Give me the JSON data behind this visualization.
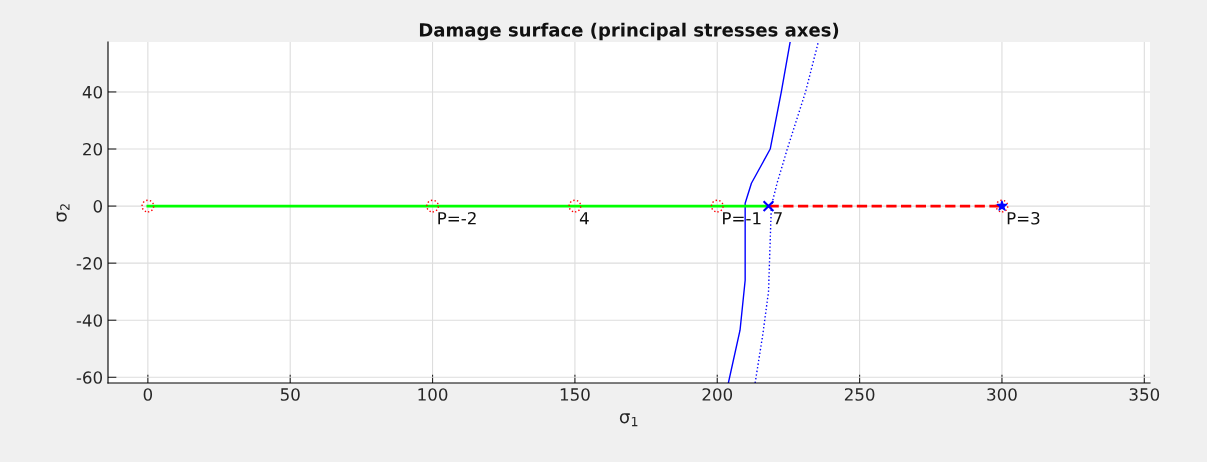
{
  "chart_data": {
    "type": "line",
    "title": "Damage surface (principal stresses axes)",
    "xlabel": "σ$_{1}$",
    "ylabel": "σ$_{2}$",
    "xlim": [
      -14,
      352
    ],
    "ylim": [
      -62,
      57.5
    ],
    "xticks": [
      0,
      50,
      100,
      150,
      200,
      250,
      300,
      350
    ],
    "yticks": [
      -60,
      -40,
      -20,
      0,
      20,
      40
    ],
    "grid": true,
    "series": [
      {
        "color": "#0000ff",
        "line_style": "solid",
        "x": [
          203.9,
          208,
          209.8,
          209.8,
          212,
          218.6,
          222.5,
          225.6
        ],
        "values": [
          -62,
          -43.5,
          -26,
          1,
          8,
          20,
          40,
          57.5
        ]
      },
      {
        "color": "#0000ff",
        "line_style": "dotted",
        "x": [
          213.3,
          216,
          218,
          219,
          221,
          224.6,
          231,
          235.5
        ],
        "values": [
          -62,
          -45,
          -30,
          0,
          8,
          20,
          40,
          57.5
        ]
      },
      {
        "color": "#00ff00",
        "line_style": "solid",
        "x": [
          0,
          218
        ],
        "values": [
          0,
          0
        ]
      },
      {
        "color": "#ff0000",
        "line_style": "dashed",
        "x": [
          218,
          300
        ],
        "values": [
          0,
          0
        ]
      },
      {
        "type": "scatter",
        "color": "#ff0000",
        "marker": "circle",
        "x": [
          0,
          100,
          150,
          200,
          300
        ],
        "values": [
          0,
          0,
          0,
          0,
          0
        ]
      },
      {
        "type": "scatter",
        "color": "#0000ff",
        "marker": "cross",
        "x": [
          218
        ],
        "values": [
          0
        ]
      },
      {
        "type": "scatter",
        "color": "#0000ff",
        "marker": "star",
        "x": [
          300
        ],
        "values": [
          0
        ]
      }
    ],
    "annotations": [
      {
        "text": "P=-2",
        "x": 100,
        "y": 0
      },
      {
        "text": "4",
        "x": 150,
        "y": 0
      },
      {
        "text": "P=-1",
        "x": 200,
        "y": 0
      },
      {
        "text": "7",
        "x": 218,
        "y": 0
      },
      {
        "text": "P=3",
        "x": 300,
        "y": 0
      }
    ]
  }
}
